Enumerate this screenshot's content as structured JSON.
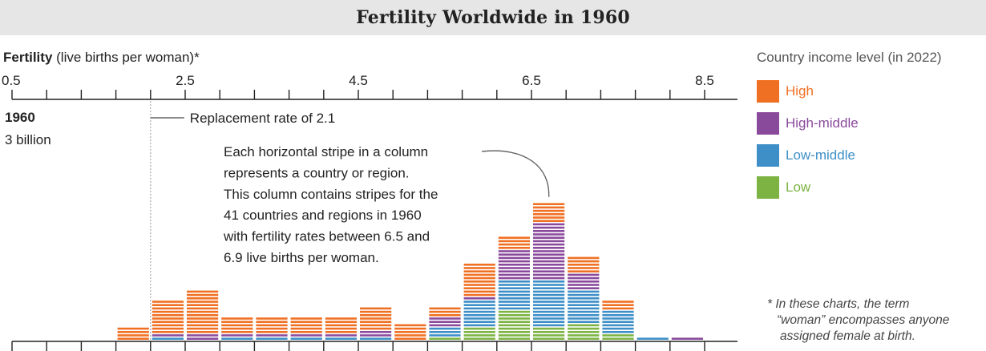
{
  "title": "Fertility Worldwide in 1960",
  "legend": {
    "title": "Country income level (in 2022)",
    "items": [
      {
        "label": "High",
        "color": "#f07023"
      },
      {
        "label": "High-middle",
        "color": "#8a4a9c"
      },
      {
        "label": "Low-middle",
        "color": "#3e8fc7"
      },
      {
        "label": "Low",
        "color": "#7cb342"
      }
    ]
  },
  "footnote": {
    "lines": [
      "* In these charts, the term",
      "“woman” encompasses anyone",
      "assigned female at birth."
    ]
  },
  "chart_data": {
    "type": "bar",
    "title": "Fertility Worldwide in 1960",
    "xlabel_bold": "Fertility",
    "xlabel_rest": " (live births per woman)*",
    "x_ticks": [
      "0.5",
      "2.5",
      "4.5",
      "6.5",
      "8.5"
    ],
    "x_tick_values": [
      0.5,
      2.5,
      4.5,
      6.5,
      8.5
    ],
    "xlim": [
      0.5,
      8.9
    ],
    "bin_width": 0.4,
    "year": "1960",
    "population": "3 billion",
    "replacement": {
      "value": 2.1,
      "label": "Replacement rate of 2.1"
    },
    "annotation": {
      "lines": [
        "Each horizontal stripe in a column",
        "represents a country or region.",
        "This column contains stripes for the",
        "41 countries and regions in 1960",
        "with fertility rates between 6.5 and",
        "6.9 live births per woman."
      ],
      "bin_start": 6.5
    },
    "series_order": [
      "Low",
      "Low-middle",
      "High-middle",
      "High"
    ],
    "bins": [
      {
        "start": 1.7,
        "end": 2.1,
        "counts": {
          "Low": 0,
          "Low-middle": 0,
          "High-middle": 0,
          "High": 4
        }
      },
      {
        "start": 2.1,
        "end": 2.5,
        "counts": {
          "Low": 0,
          "Low-middle": 1,
          "High-middle": 1,
          "High": 10
        }
      },
      {
        "start": 2.5,
        "end": 2.9,
        "counts": {
          "Low": 0,
          "Low-middle": 0,
          "High-middle": 2,
          "High": 13
        }
      },
      {
        "start": 2.9,
        "end": 3.3,
        "counts": {
          "Low": 0,
          "Low-middle": 1,
          "High-middle": 1,
          "High": 5
        }
      },
      {
        "start": 3.3,
        "end": 3.7,
        "counts": {
          "Low": 0,
          "Low-middle": 1,
          "High-middle": 1,
          "High": 5
        }
      },
      {
        "start": 3.7,
        "end": 4.1,
        "counts": {
          "Low": 0,
          "Low-middle": 1,
          "High-middle": 1,
          "High": 5
        }
      },
      {
        "start": 4.1,
        "end": 4.5,
        "counts": {
          "Low": 0,
          "Low-middle": 1,
          "High-middle": 1,
          "High": 5
        }
      },
      {
        "start": 4.5,
        "end": 4.9,
        "counts": {
          "Low": 0,
          "Low-middle": 1,
          "High-middle": 2,
          "High": 7
        }
      },
      {
        "start": 4.9,
        "end": 5.3,
        "counts": {
          "Low": 0,
          "Low-middle": 0,
          "High-middle": 0,
          "High": 5
        }
      },
      {
        "start": 5.3,
        "end": 5.7,
        "counts": {
          "Low": 1,
          "Low-middle": 3,
          "High-middle": 3,
          "High": 3
        }
      },
      {
        "start": 5.7,
        "end": 6.1,
        "counts": {
          "Low": 4,
          "Low-middle": 8,
          "High-middle": 1,
          "High": 10
        }
      },
      {
        "start": 6.1,
        "end": 6.5,
        "counts": {
          "Low": 9,
          "Low-middle": 9,
          "High-middle": 9,
          "High": 4
        }
      },
      {
        "start": 6.5,
        "end": 6.9,
        "counts": {
          "Low": 4,
          "Low-middle": 14,
          "High-middle": 17,
          "High": 6
        }
      },
      {
        "start": 6.9,
        "end": 7.3,
        "counts": {
          "Low": 5,
          "Low-middle": 10,
          "High-middle": 5,
          "High": 5
        }
      },
      {
        "start": 7.3,
        "end": 7.7,
        "counts": {
          "Low": 2,
          "Low-middle": 7,
          "High-middle": 0,
          "High": 3
        }
      },
      {
        "start": 7.7,
        "end": 8.1,
        "counts": {
          "Low": 0,
          "Low-middle": 1,
          "High-middle": 0,
          "High": 0
        }
      },
      {
        "start": 8.1,
        "end": 8.5,
        "counts": {
          "Low": 0,
          "Low-middle": 0,
          "High-middle": 1,
          "High": 0
        }
      }
    ]
  }
}
